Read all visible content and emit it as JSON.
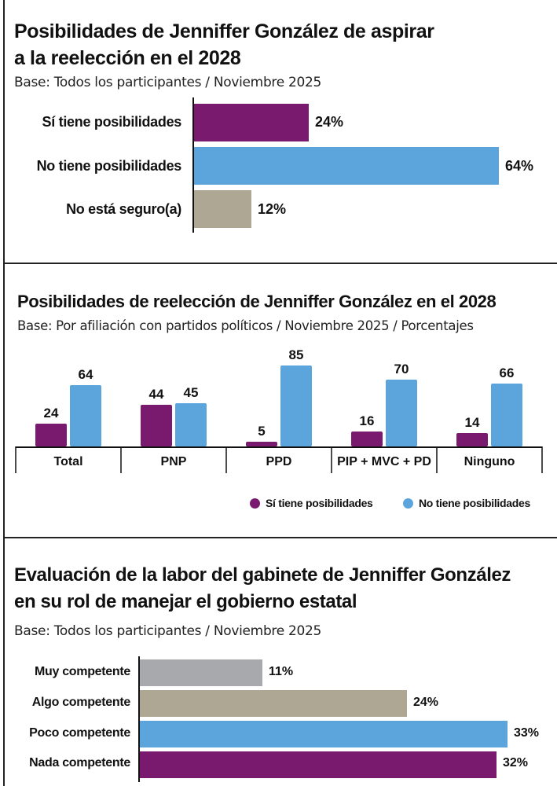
{
  "colors": {
    "si": "#7a1a6e",
    "no": "#5ba4dc",
    "no_seguro": "#aea793",
    "muy": "#a8a9ad",
    "algo": "#aea793",
    "poco": "#5ba4dc",
    "nada": "#7a1a6e"
  },
  "chart_data": [
    {
      "type": "bar",
      "orientation": "horizontal",
      "title_line1": "Posibilidades de Jenniffer González de aspirar",
      "title_line2": "a la reelección en el 2028",
      "subtitle": "Base: Todos los participantes / Noviembre 2025",
      "categories": [
        "Sí tiene posibilidades",
        "No tiene posibilidades",
        "No está seguro(a)"
      ],
      "values": [
        24,
        64,
        12
      ],
      "value_labels": [
        "24%",
        "64%",
        "12%"
      ]
    },
    {
      "type": "bar",
      "orientation": "vertical",
      "title": "Posibilidades de reelección de Jenniffer González en el 2028",
      "subtitle": "Base: Por afiliación con partidos políticos / Noviembre 2025 / Porcentajes",
      "categories": [
        "Total",
        "PNP",
        "PPD",
        "PIP + MVC + PD",
        "Ninguno"
      ],
      "series": [
        {
          "name": "Sí tiene posibilidades",
          "values": [
            24,
            44,
            5,
            16,
            14
          ]
        },
        {
          "name": "No tiene posibilidades",
          "values": [
            64,
            45,
            85,
            70,
            66
          ]
        }
      ],
      "legend": [
        "Sí tiene posibilidades",
        "No tiene posibilidades"
      ],
      "legend_position": "bottom-right"
    },
    {
      "type": "bar",
      "orientation": "horizontal",
      "title_line1": "Evaluación de la labor del gabinete de Jenniffer González",
      "title_line2": "en su rol de manejar el gobierno estatal",
      "subtitle": "Base: Todos los participantes / Noviembre 2025",
      "categories": [
        "Muy competente",
        "Algo competente",
        "Poco competente",
        "Nada competente"
      ],
      "values": [
        11,
        24,
        33,
        32
      ],
      "value_labels": [
        "11%",
        "24%",
        "33%",
        "32%"
      ]
    }
  ]
}
